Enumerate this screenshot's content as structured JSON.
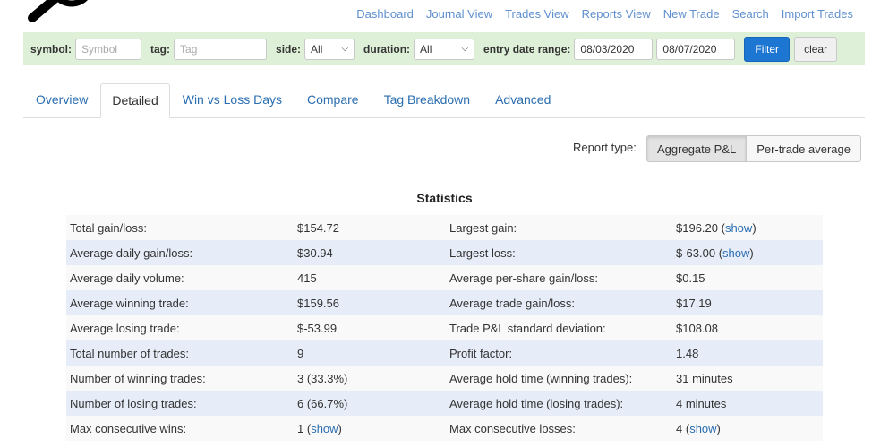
{
  "nav": [
    "Dashboard",
    "Journal View",
    "Trades View",
    "Reports View",
    "New Trade",
    "Search",
    "Import Trades"
  ],
  "filter": {
    "symbol_label": "symbol:",
    "symbol_placeholder": "Symbol",
    "tag_label": "tag:",
    "tag_placeholder": "Tag",
    "side_label": "side:",
    "side_value": "All",
    "duration_label": "duration:",
    "duration_value": "All",
    "date_label": "entry date range:",
    "date_from": "08/03/2020",
    "date_to": "08/07/2020",
    "filter_button": "Filter",
    "clear_button": "clear"
  },
  "tabs": [
    {
      "label": "Overview",
      "active": false
    },
    {
      "label": "Detailed",
      "active": true
    },
    {
      "label": "Win vs Loss Days",
      "active": false
    },
    {
      "label": "Compare",
      "active": false
    },
    {
      "label": "Tag Breakdown",
      "active": false
    },
    {
      "label": "Advanced",
      "active": false
    }
  ],
  "report_type": {
    "label": "Report type:",
    "options": [
      "Aggregate P&L",
      "Per-trade average"
    ],
    "selected": "Aggregate P&L"
  },
  "stats": {
    "title": "Statistics",
    "show_label": "show",
    "rows": [
      {
        "l1": "Total gain/loss:",
        "v1": "$154.72",
        "l2": "Largest gain:",
        "v2": "$196.20",
        "v2_show": true
      },
      {
        "l1": "Average daily gain/loss:",
        "v1": "$30.94",
        "l2": "Largest loss:",
        "v2": "$-63.00",
        "v2_show": true
      },
      {
        "l1": "Average daily volume:",
        "v1": "415",
        "l2": "Average per-share gain/loss:",
        "v2": "$0.15"
      },
      {
        "l1": "Average winning trade:",
        "v1": "$159.56",
        "l2": "Average trade gain/loss:",
        "v2": "$17.19"
      },
      {
        "l1": "Average losing trade:",
        "v1": "$-53.99",
        "l2": "Trade P&L standard deviation:",
        "v2": "$108.08"
      },
      {
        "l1": "Total number of trades:",
        "v1": "9",
        "l2": "Profit factor:",
        "v2": "1.48"
      },
      {
        "l1": "Number of winning trades:",
        "v1": "3 (33.3%)",
        "l2": "Average hold time (winning trades):",
        "v2": "31 minutes"
      },
      {
        "l1": "Number of losing trades:",
        "v1": "6 (66.7%)",
        "l2": "Average hold time (losing trades):",
        "v2": "4 minutes"
      },
      {
        "l1": "Max consecutive wins:",
        "v1": "1",
        "v1_show": true,
        "l2": "Max consecutive losses:",
        "v2": "4",
        "v2_show": true
      }
    ]
  },
  "colors": {
    "link": "#2a6db0",
    "filter_bar": "#dff0d8",
    "primary_button": "#1d76d2"
  }
}
